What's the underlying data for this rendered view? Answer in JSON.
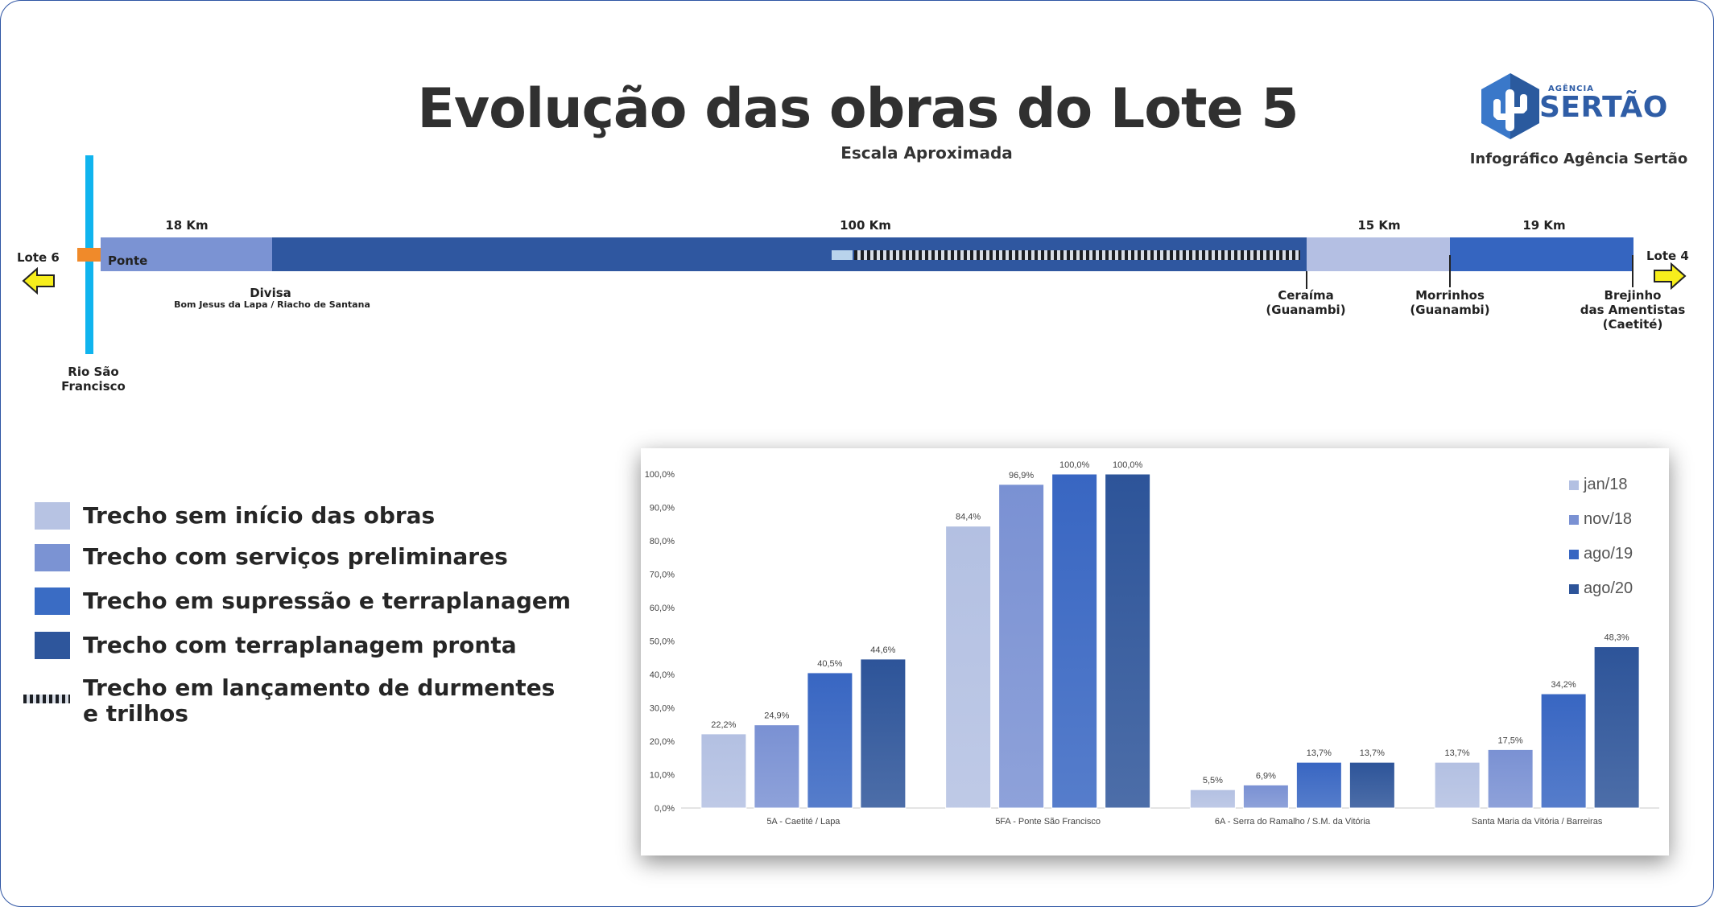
{
  "header": {
    "title": "Evolução das obras do Lote 5",
    "subtitle": "Escala Aproximada",
    "credit": "Infográfico Agência Sertão",
    "logo_small": "AGÊNCIA",
    "logo_word": "SERTÃO"
  },
  "map": {
    "lote_left": "Lote 6",
    "lote_right": "Lote 4",
    "ponte": "Ponte",
    "km": [
      "18 Km",
      "100 Km",
      "15 Km",
      "19 Km"
    ],
    "rio": [
      "Rio São",
      "Francisco"
    ],
    "divisa": "Divisa",
    "divisa_sub": "Bom Jesus da Lapa / Riacho de Santana",
    "ceraima": [
      "Ceraíma",
      "(Guanambi)"
    ],
    "morrinhos": [
      "Morrinhos",
      "(Guanambi)"
    ],
    "brejinho": [
      "Brejinho",
      "das Amentistas",
      "(Caetité)"
    ]
  },
  "legend": [
    {
      "label": "Trecho sem início das obras",
      "color": "#b7c3e3"
    },
    {
      "label": "Trecho com serviços preliminares",
      "color": "#7b93d3"
    },
    {
      "label": "Trecho em supressão e terraplanagem",
      "color": "#3a6cc4"
    },
    {
      "label": "Trecho com terraplanagem pronta",
      "color": "#2e569c"
    },
    {
      "label": "Trecho em lançamento de durmentes",
      "label2": "e trilhos",
      "color": "#1e2a3a"
    }
  ],
  "colors": {
    "segment_preliminares": "#7b93d3",
    "segment_pronta": "#2f57a0",
    "segment_sem_inicio": "#b4bfe3",
    "segment_supressao": "#3565c0",
    "river": "#10b4ee",
    "bridge": "#f08a2a",
    "arrow": "#f7ee1c"
  },
  "chart_data": {
    "type": "bar",
    "categories": [
      "5A - Caetité / Lapa",
      "5FA - Ponte São Francisco",
      "6A - Serra do Ramalho / S.M. da Vitória",
      "Santa Maria da Vitória / Barreiras"
    ],
    "series": [
      {
        "name": "jan/18",
        "values": [
          22.2,
          84.4,
          5.5,
          13.7
        ],
        "color": "#b3c0e2"
      },
      {
        "name": "nov/18",
        "values": [
          24.9,
          96.9,
          6.9,
          17.5
        ],
        "color": "#7a91d3"
      },
      {
        "name": "ago/19",
        "values": [
          40.5,
          100.0,
          13.7,
          34.2
        ],
        "color": "#3866c2"
      },
      {
        "name": "ago/20",
        "values": [
          44.6,
          100.0,
          13.7,
          48.3
        ],
        "color": "#2d5499"
      }
    ],
    "value_labels": [
      [
        "22,2%",
        "84,4%",
        "5,5%",
        "13,7%"
      ],
      [
        "24,9%",
        "96,9%",
        "6,9%",
        "17,5%"
      ],
      [
        "40,5%",
        "100,0%",
        "13,7%",
        "34,2%"
      ],
      [
        "44,6%",
        "100,0%",
        "13,7%",
        "48,3%"
      ]
    ],
    "yticks": [
      "0,0%",
      "10,0%",
      "20,0%",
      "30,0%",
      "40,0%",
      "50,0%",
      "60,0%",
      "70,0%",
      "80,0%",
      "90,0%",
      "100,0%"
    ],
    "ylim": [
      0,
      100
    ],
    "legend_position": "top-right",
    "grid": false
  }
}
